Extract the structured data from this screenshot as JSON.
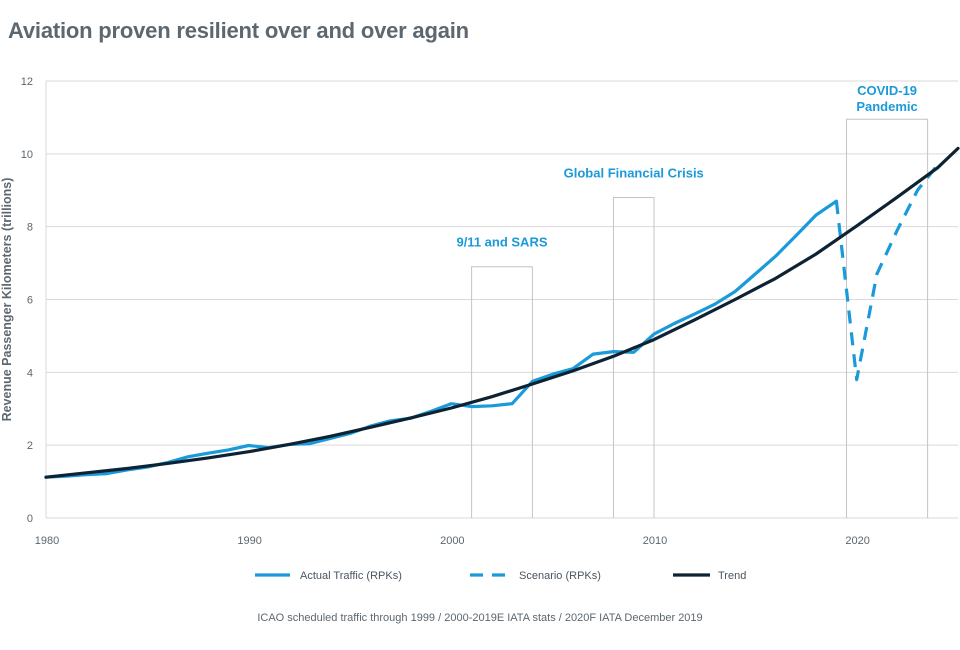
{
  "title": "Aviation proven resilient over and over again",
  "source_note": "ICAO scheduled traffic through 1999 / 2000-2019E IATA stats / 2020F IATA December 2019",
  "colors": {
    "actual": "#1a9ad9",
    "scenario": "#1a9ad9",
    "trend": "#0d2233",
    "grid": "#d9d9d9",
    "annotation": "#1a9ad9"
  },
  "chart_data": {
    "type": "line",
    "ylabel": "Revenue Passenger Kilometers (trillions)",
    "xlim": [
      1980,
      2025
    ],
    "ylim": [
      0,
      12
    ],
    "x_ticks": [
      1980,
      1990,
      2000,
      2010,
      2020
    ],
    "y_ticks": [
      0,
      2,
      4,
      6,
      8,
      10,
      12
    ],
    "grid": "horizontal",
    "legend_position": "bottom",
    "series": [
      {
        "name": "Actual Traffic (RPKs)",
        "style": "solid",
        "x": [
          1980,
          1981,
          1982,
          1983,
          1984,
          1985,
          1986,
          1987,
          1988,
          1989,
          1990,
          1991,
          1992,
          1993,
          1994,
          1995,
          1996,
          1997,
          1998,
          1999,
          2000,
          2001,
          2002,
          2003,
          2004,
          2005,
          2006,
          2007,
          2008,
          2009,
          2010,
          2011,
          2012,
          2013,
          2014,
          2015,
          2016,
          2017,
          2018,
          2019
        ],
        "y": [
          1.12,
          1.15,
          1.19,
          1.22,
          1.32,
          1.4,
          1.52,
          1.68,
          1.78,
          1.87,
          1.99,
          1.93,
          2.02,
          2.04,
          2.18,
          2.32,
          2.52,
          2.67,
          2.74,
          2.93,
          3.14,
          3.06,
          3.08,
          3.14,
          3.75,
          3.95,
          4.1,
          4.5,
          4.57,
          4.55,
          5.05,
          5.34,
          5.6,
          5.87,
          6.22,
          6.7,
          7.19,
          7.75,
          8.32,
          8.7
        ]
      },
      {
        "name": "Scenario (RPKs)",
        "style": "dashed",
        "x": [
          2019,
          2020,
          2021,
          2022,
          2023,
          2024
        ],
        "y": [
          8.7,
          3.8,
          6.7,
          7.9,
          9.0,
          9.7
        ]
      },
      {
        "name": "Trend",
        "style": "solid",
        "x": [
          1980,
          1982,
          1984,
          1986,
          1988,
          1990,
          1992,
          1994,
          1996,
          1998,
          2000,
          2002,
          2004,
          2006,
          2008,
          2010,
          2012,
          2014,
          2016,
          2018,
          2020,
          2022,
          2024,
          2025
        ],
        "y": [
          1.12,
          1.24,
          1.36,
          1.5,
          1.65,
          1.82,
          2.02,
          2.24,
          2.49,
          2.75,
          3.02,
          3.33,
          3.68,
          4.04,
          4.44,
          4.9,
          5.44,
          6.0,
          6.58,
          7.25,
          8.02,
          8.81,
          9.62,
          10.15
        ]
      }
    ],
    "annotations": [
      {
        "label": "9/11 and SARS",
        "x_start": 2001,
        "x_end": 2004,
        "y_top": 6.9
      },
      {
        "label": "Global Financial Crisis",
        "x_start": 2008,
        "x_end": 2010,
        "y_top": 8.8
      },
      {
        "label_lines": [
          "COVID-19",
          "Pandemic"
        ],
        "x_start": 2019.5,
        "x_end": 2023.5,
        "y_top": 10.95
      }
    ]
  }
}
